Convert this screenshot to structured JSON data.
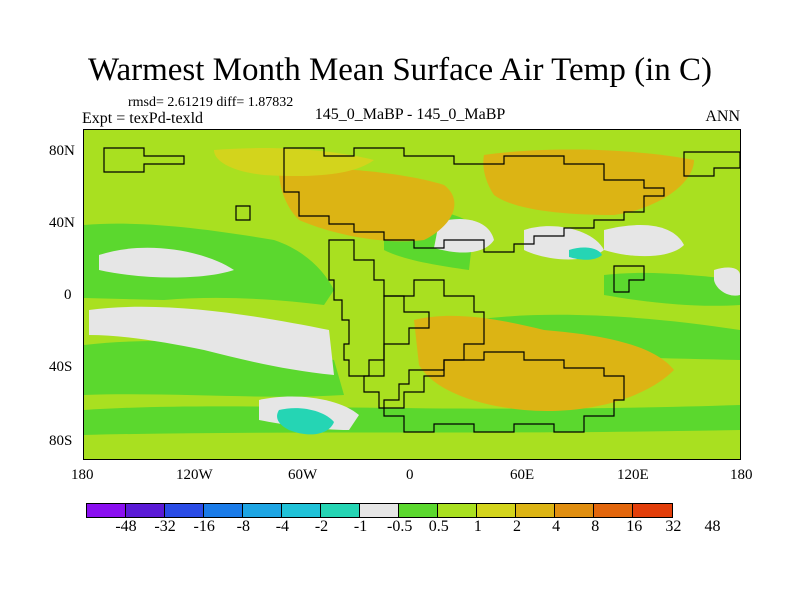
{
  "title": "Warmest Month Mean Surface Air Temp (in C)",
  "stats": "rmsd= 2.61219 diff= 1.87832",
  "expt": "Expt = texPd-texld",
  "center_label": "145_0_MaBP - 145_0_MaBP",
  "season": "ANN",
  "lat_labels": [
    "80N",
    "40N",
    "0",
    "40S",
    "80S"
  ],
  "lon_labels": [
    "180",
    "120W",
    "60W",
    "0",
    "60E",
    "120E",
    "180"
  ],
  "colorbar": {
    "colors": [
      "#8a0ff0",
      "#5a1ad6",
      "#2a4ce6",
      "#1a7be8",
      "#1ea5e3",
      "#20c2d8",
      "#25d5b4",
      "#e6e6e6",
      "#5bd82e",
      "#a9e020",
      "#d3d41c",
      "#dcb414",
      "#e08e10",
      "#e2660c",
      "#e23e0a"
    ],
    "labels": [
      "-48",
      "-32",
      "-16",
      "-8",
      "-4",
      "-2",
      "-1",
      "-0.5",
      "0.5",
      "1",
      "2",
      "4",
      "8",
      "16",
      "32",
      "48"
    ]
  },
  "map_colors": {
    "background": "#a9e020",
    "strong_positive": "#dcb414",
    "moderate_positive": "#d3d41c",
    "small_positive": "#5bd82e",
    "near_zero": "#e6e6e6",
    "small_negative": "#25d5b4"
  }
}
